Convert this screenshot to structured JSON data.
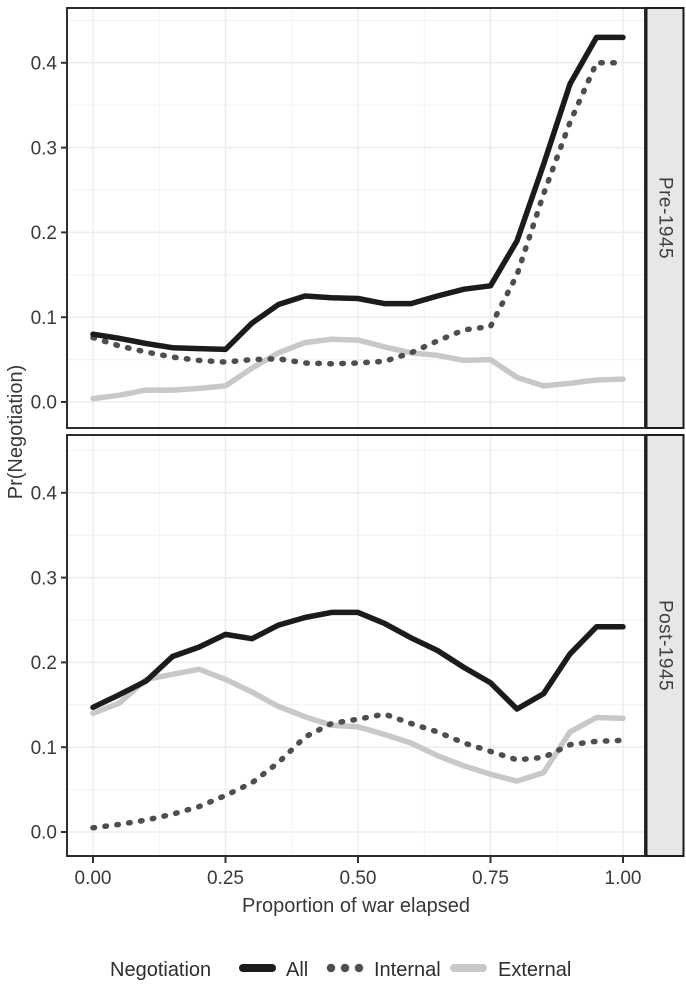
{
  "figure": {
    "y_axis_title": "Pr(Negotiation)",
    "x_axis_title": "Proportion of war elapsed",
    "x_tick_labels": [
      "0.00",
      "0.25",
      "0.50",
      "0.75",
      "1.00"
    ],
    "x_tick_values": [
      0,
      0.25,
      0.5,
      0.75,
      1.0
    ],
    "y_tick_labels": [
      "0.0",
      "0.1",
      "0.2",
      "0.3",
      "0.4"
    ],
    "y_tick_values": [
      0,
      0.1,
      0.2,
      0.3,
      0.4
    ],
    "legend": {
      "title": "Negotiation",
      "items": [
        {
          "label": "All",
          "style": "solid-dark"
        },
        {
          "label": "Internal",
          "style": "dotted-gray"
        },
        {
          "label": "External",
          "style": "solid-light"
        }
      ]
    },
    "colors": {
      "all_line": "#1b1b1b",
      "internal_line": "#4e4e4e",
      "external_line": "#c8c8c8",
      "panel_border": "#2e2e2e",
      "grid_major": "#ededed",
      "grid_minor": "#f3f3f3",
      "strip_background": "#e7e7e7",
      "text": "#3a3a3a"
    }
  },
  "chart_data": [
    {
      "type": "line",
      "facet": "Pre-1945",
      "xlabel": "Proportion of war elapsed",
      "ylabel": "Pr(Negotiation)",
      "xlim": [
        0,
        1
      ],
      "ylim": [
        0,
        0.45
      ],
      "grid": true,
      "x": [
        0,
        0.05,
        0.1,
        0.15,
        0.2,
        0.25,
        0.3,
        0.35,
        0.4,
        0.45,
        0.5,
        0.55,
        0.6,
        0.65,
        0.7,
        0.75,
        0.8,
        0.85,
        0.9,
        0.95,
        1.0
      ],
      "series": [
        {
          "name": "All",
          "values": [
            0.08,
            0.075,
            0.069,
            0.064,
            0.063,
            0.062,
            0.093,
            0.115,
            0.125,
            0.123,
            0.122,
            0.116,
            0.116,
            0.125,
            0.133,
            0.137,
            0.19,
            0.28,
            0.375,
            0.43,
            0.43
          ]
        },
        {
          "name": "Internal",
          "values": [
            0.076,
            0.066,
            0.059,
            0.053,
            0.049,
            0.047,
            0.05,
            0.051,
            0.046,
            0.045,
            0.046,
            0.048,
            0.058,
            0.072,
            0.085,
            0.089,
            0.15,
            0.245,
            0.33,
            0.4,
            0.4
          ]
        },
        {
          "name": "External",
          "values": [
            0.004,
            0.008,
            0.014,
            0.014,
            0.016,
            0.019,
            0.04,
            0.058,
            0.07,
            0.074,
            0.073,
            0.065,
            0.058,
            0.055,
            0.049,
            0.05,
            0.029,
            0.019,
            0.022,
            0.026,
            0.027
          ]
        }
      ]
    },
    {
      "type": "line",
      "facet": "Post-1945",
      "xlabel": "Proportion of war elapsed",
      "ylabel": "Pr(Negotiation)",
      "xlim": [
        0,
        1
      ],
      "ylim": [
        0,
        0.45
      ],
      "grid": true,
      "x": [
        0,
        0.05,
        0.1,
        0.15,
        0.2,
        0.25,
        0.3,
        0.35,
        0.4,
        0.45,
        0.5,
        0.55,
        0.6,
        0.65,
        0.7,
        0.75,
        0.8,
        0.85,
        0.9,
        0.95,
        1.0
      ],
      "series": [
        {
          "name": "All",
          "values": [
            0.147,
            0.162,
            0.178,
            0.207,
            0.218,
            0.233,
            0.228,
            0.244,
            0.253,
            0.259,
            0.259,
            0.246,
            0.229,
            0.214,
            0.194,
            0.176,
            0.145,
            0.163,
            0.21,
            0.242,
            0.242
          ]
        },
        {
          "name": "Internal",
          "values": [
            0.005,
            0.009,
            0.014,
            0.021,
            0.03,
            0.043,
            0.058,
            0.082,
            0.112,
            0.128,
            0.133,
            0.139,
            0.128,
            0.118,
            0.105,
            0.095,
            0.085,
            0.088,
            0.103,
            0.107,
            0.108
          ]
        },
        {
          "name": "External",
          "values": [
            0.14,
            0.152,
            0.18,
            0.186,
            0.192,
            0.18,
            0.165,
            0.148,
            0.136,
            0.126,
            0.124,
            0.115,
            0.105,
            0.09,
            0.078,
            0.068,
            0.06,
            0.07,
            0.118,
            0.135,
            0.134
          ]
        }
      ]
    }
  ]
}
